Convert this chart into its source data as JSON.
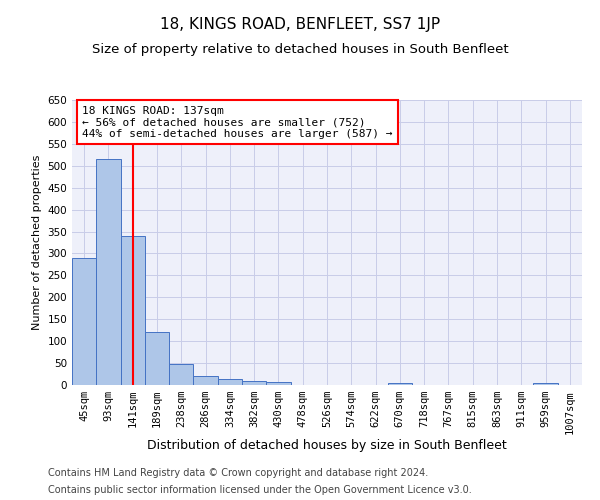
{
  "title": "18, KINGS ROAD, BENFLEET, SS7 1JP",
  "subtitle": "Size of property relative to detached houses in South Benfleet",
  "xlabel": "Distribution of detached houses by size in South Benfleet",
  "ylabel": "Number of detached properties",
  "categories": [
    "45sqm",
    "93sqm",
    "141sqm",
    "189sqm",
    "238sqm",
    "286sqm",
    "334sqm",
    "382sqm",
    "430sqm",
    "478sqm",
    "526sqm",
    "574sqm",
    "622sqm",
    "670sqm",
    "718sqm",
    "767sqm",
    "815sqm",
    "863sqm",
    "911sqm",
    "959sqm",
    "1007sqm"
  ],
  "values": [
    290,
    515,
    340,
    120,
    48,
    20,
    13,
    10,
    6,
    0,
    0,
    0,
    0,
    5,
    0,
    0,
    0,
    0,
    0,
    5,
    0
  ],
  "bar_color": "#aec6e8",
  "bar_edge_color": "#4472c4",
  "vline_x_index": 2,
  "vline_color": "red",
  "annotation_text": "18 KINGS ROAD: 137sqm\n← 56% of detached houses are smaller (752)\n44% of semi-detached houses are larger (587) →",
  "annotation_box_color": "white",
  "annotation_box_edge": "red",
  "ylim": [
    0,
    650
  ],
  "yticks": [
    0,
    50,
    100,
    150,
    200,
    250,
    300,
    350,
    400,
    450,
    500,
    550,
    600,
    650
  ],
  "footer_line1": "Contains HM Land Registry data © Crown copyright and database right 2024.",
  "footer_line2": "Contains public sector information licensed under the Open Government Licence v3.0.",
  "background_color": "#eef0fa",
  "grid_color": "#c8cce8",
  "title_fontsize": 11,
  "subtitle_fontsize": 9.5,
  "xlabel_fontsize": 9,
  "ylabel_fontsize": 8,
  "tick_fontsize": 7.5,
  "footer_fontsize": 7,
  "ann_fontsize": 8
}
